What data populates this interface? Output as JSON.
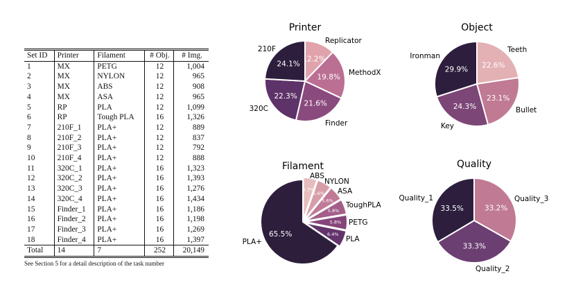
{
  "table": {
    "headers": [
      "Set ID",
      "Printer",
      "Filament",
      "# Obj.",
      "# Img."
    ],
    "rows": [
      [
        "1",
        "MX",
        "PETG",
        "12",
        "1,004"
      ],
      [
        "2",
        "MX",
        "NYLON",
        "12",
        "965"
      ],
      [
        "3",
        "MX",
        "ABS",
        "12",
        "908"
      ],
      [
        "4",
        "MX",
        "ASA",
        "12",
        "965"
      ],
      [
        "5",
        "RP",
        "PLA",
        "12",
        "1,099"
      ],
      [
        "6",
        "RP",
        "Tough PLA",
        "16",
        "1,326"
      ],
      [
        "7",
        "210F_1",
        "PLA+",
        "12",
        "889"
      ],
      [
        "8",
        "210F_2",
        "PLA+",
        "12",
        "837"
      ],
      [
        "9",
        "210F_3",
        "PLA+",
        "12",
        "792"
      ],
      [
        "10",
        "210F_4",
        "PLA+",
        "12",
        "888"
      ],
      [
        "11",
        "320C_1",
        "PLA+",
        "16",
        "1,323"
      ],
      [
        "12",
        "320C_2",
        "PLA+",
        "16",
        "1,393"
      ],
      [
        "13",
        "320C_3",
        "PLA+",
        "16",
        "1,276"
      ],
      [
        "14",
        "320C_4",
        "PLA+",
        "16",
        "1,434"
      ],
      [
        "15",
        "Finder_1",
        "PLA+",
        "16",
        "1,186"
      ],
      [
        "16",
        "Finder_2",
        "PLA+",
        "16",
        "1,198"
      ],
      [
        "17",
        "Finder_3",
        "PLA+",
        "16",
        "1,269"
      ],
      [
        "18",
        "Finder_4",
        "PLA+",
        "16",
        "1,397"
      ]
    ],
    "total": [
      "Total",
      "14",
      "7",
      "252",
      "20,149"
    ],
    "note": "See Section 5 for a detail description of the task number"
  },
  "chart_data": [
    {
      "type": "pie",
      "title": "Printer",
      "labels": [
        "Replicator",
        "MethodX",
        "Finder",
        "320C",
        "210F"
      ],
      "values": [
        12.2,
        19.8,
        21.6,
        22.3,
        24.1
      ],
      "pct_labels": [
        "12.2%",
        "19.8%",
        "21.6%",
        "22.3%",
        "24.1%"
      ],
      "colors": [
        "#e0a3ac",
        "#bb6f92",
        "#8b4a7e",
        "#5e3369",
        "#2c1e3c"
      ],
      "start_angle_deg": 90,
      "direction": "clockwise"
    },
    {
      "type": "pie",
      "title": "Object",
      "labels": [
        "Teeth",
        "Bullet",
        "Key",
        "Ironman"
      ],
      "values": [
        22.6,
        23.1,
        24.3,
        29.9
      ],
      "pct_labels": [
        "22.6%",
        "23.1%",
        "24.3%",
        "29.9%"
      ],
      "colors": [
        "#e3b0b4",
        "#c07a94",
        "#7c4676",
        "#2c1e3c"
      ],
      "start_angle_deg": 90,
      "direction": "clockwise"
    },
    {
      "type": "pie",
      "title": "Filament",
      "labels": [
        "ABS",
        "NYLON",
        "ASA",
        "ToughPLA",
        "PETG",
        "PLA",
        "PLA+"
      ],
      "values": [
        5.3,
        5.6,
        5.6,
        5.8,
        5.8,
        6.4,
        65.5
      ],
      "pct_labels": [
        "5.3%",
        "5.6%",
        "5.6%",
        "5.8%",
        "5.8%",
        "6.4%",
        "65.5%"
      ],
      "colors": [
        "#e6bcbc",
        "#d79ea8",
        "#c07a96",
        "#a35e89",
        "#85457a",
        "#63346b",
        "#2d1e3c"
      ],
      "exploded": [
        "ABS",
        "NYLON",
        "ASA",
        "ToughPLA",
        "PETG",
        "PLA"
      ],
      "start_angle_deg": 90,
      "direction": "clockwise"
    },
    {
      "type": "pie",
      "title": "Quality",
      "labels": [
        "Quality_3",
        "Quality_2",
        "Quality_1"
      ],
      "values": [
        33.2,
        33.3,
        33.5
      ],
      "pct_labels": [
        "33.2%",
        "33.3%",
        "33.5%"
      ],
      "colors": [
        "#c07a94",
        "#6c3f72",
        "#2c1e3c"
      ],
      "start_angle_deg": 90,
      "direction": "clockwise"
    }
  ]
}
